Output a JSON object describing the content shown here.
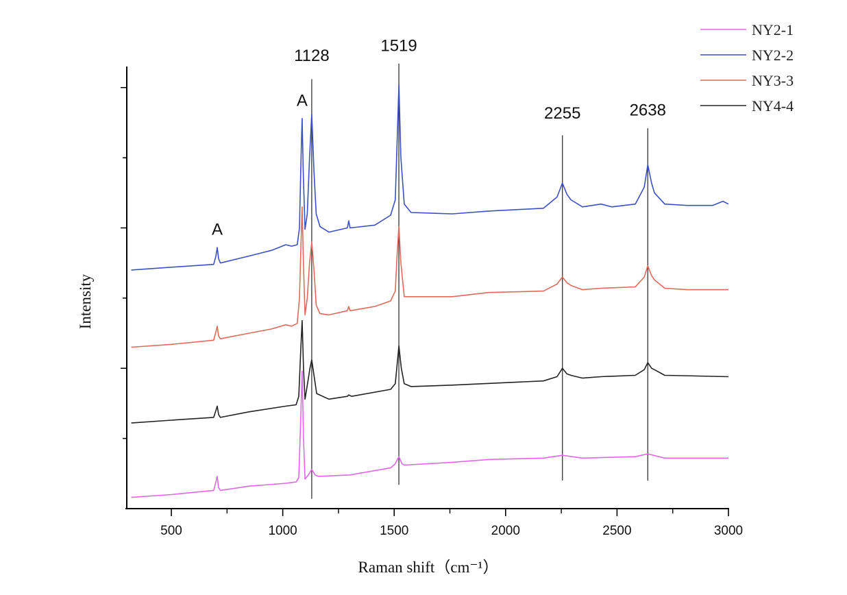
{
  "chart_data": {
    "type": "line",
    "title": "",
    "xlabel": "Raman shift（cm⁻¹）",
    "ylabel": "Intensity",
    "xlim": [
      300,
      3000
    ],
    "ylim": [
      0,
      3.15
    ],
    "x_ticks": [
      500,
      1000,
      1500,
      2000,
      2500,
      3000
    ],
    "x_tick_labels": [
      "500",
      "1000",
      "1500",
      "2000",
      "2500",
      "3000"
    ],
    "y_ticks_unlabeled": true,
    "grid": false,
    "legend_position": "top-right",
    "series": [
      {
        "name": "NY2-1",
        "color": "#e067e8",
        "points": [
          [
            320,
            0.08
          ],
          [
            500,
            0.1
          ],
          [
            690,
            0.13
          ],
          [
            700,
            0.19
          ],
          [
            706,
            0.23
          ],
          [
            712,
            0.15
          ],
          [
            720,
            0.13
          ],
          [
            850,
            0.16
          ],
          [
            1013,
            0.18
          ],
          [
            1060,
            0.19
          ],
          [
            1072,
            0.22
          ],
          [
            1080,
            0.6
          ],
          [
            1087,
            0.98
          ],
          [
            1093,
            0.5
          ],
          [
            1100,
            0.21
          ],
          [
            1115,
            0.24
          ],
          [
            1130,
            0.28
          ],
          [
            1145,
            0.24
          ],
          [
            1160,
            0.23
          ],
          [
            1300,
            0.24
          ],
          [
            1484,
            0.29
          ],
          [
            1505,
            0.32
          ],
          [
            1521,
            0.37
          ],
          [
            1535,
            0.32
          ],
          [
            1545,
            0.31
          ],
          [
            1761,
            0.33
          ],
          [
            1924,
            0.35
          ],
          [
            2170,
            0.36
          ],
          [
            2255,
            0.38
          ],
          [
            2345,
            0.36
          ],
          [
            2582,
            0.37
          ],
          [
            2638,
            0.39
          ],
          [
            2714,
            0.36
          ],
          [
            3000,
            0.36
          ]
        ]
      },
      {
        "name": "NY2-2",
        "color": "#3b4fc6",
        "points": [
          [
            320,
            1.7
          ],
          [
            500,
            1.72
          ],
          [
            690,
            1.74
          ],
          [
            700,
            1.8
          ],
          [
            706,
            1.86
          ],
          [
            712,
            1.78
          ],
          [
            720,
            1.75
          ],
          [
            850,
            1.8
          ],
          [
            950,
            1.84
          ],
          [
            1013,
            1.88
          ],
          [
            1040,
            1.87
          ],
          [
            1065,
            1.88
          ],
          [
            1075,
            2.0
          ],
          [
            1082,
            2.5
          ],
          [
            1087,
            2.78
          ],
          [
            1092,
            2.4
          ],
          [
            1100,
            1.99
          ],
          [
            1110,
            2.1
          ],
          [
            1120,
            2.5
          ],
          [
            1130,
            2.81
          ],
          [
            1140,
            2.4
          ],
          [
            1150,
            2.1
          ],
          [
            1167,
            2.01
          ],
          [
            1207,
            1.97
          ],
          [
            1290,
            2.0
          ],
          [
            1296,
            2.05
          ],
          [
            1302,
            2.0
          ],
          [
            1413,
            2.02
          ],
          [
            1484,
            2.09
          ],
          [
            1505,
            2.2
          ],
          [
            1513,
            2.6
          ],
          [
            1521,
            3.02
          ],
          [
            1530,
            2.5
          ],
          [
            1545,
            2.17
          ],
          [
            1576,
            2.11
          ],
          [
            1761,
            2.1
          ],
          [
            1924,
            2.12
          ],
          [
            2170,
            2.14
          ],
          [
            2231,
            2.22
          ],
          [
            2255,
            2.32
          ],
          [
            2275,
            2.24
          ],
          [
            2293,
            2.2
          ],
          [
            2345,
            2.15
          ],
          [
            2428,
            2.17
          ],
          [
            2477,
            2.15
          ],
          [
            2582,
            2.17
          ],
          [
            2622,
            2.29
          ],
          [
            2638,
            2.45
          ],
          [
            2655,
            2.32
          ],
          [
            2668,
            2.25
          ],
          [
            2714,
            2.17
          ],
          [
            2815,
            2.16
          ],
          [
            2929,
            2.16
          ],
          [
            2975,
            2.19
          ],
          [
            3000,
            2.17
          ]
        ]
      },
      {
        "name": "NY3-3",
        "color": "#e06a5a",
        "points": [
          [
            320,
            1.15
          ],
          [
            500,
            1.17
          ],
          [
            690,
            1.2
          ],
          [
            700,
            1.26
          ],
          [
            706,
            1.3
          ],
          [
            712,
            1.23
          ],
          [
            720,
            1.21
          ],
          [
            850,
            1.25
          ],
          [
            950,
            1.28
          ],
          [
            1013,
            1.31
          ],
          [
            1040,
            1.3
          ],
          [
            1065,
            1.32
          ],
          [
            1075,
            1.5
          ],
          [
            1082,
            1.9
          ],
          [
            1087,
            2.15
          ],
          [
            1092,
            1.8
          ],
          [
            1100,
            1.38
          ],
          [
            1110,
            1.5
          ],
          [
            1120,
            1.75
          ],
          [
            1130,
            1.9
          ],
          [
            1140,
            1.7
          ],
          [
            1150,
            1.45
          ],
          [
            1167,
            1.39
          ],
          [
            1207,
            1.38
          ],
          [
            1290,
            1.41
          ],
          [
            1296,
            1.44
          ],
          [
            1302,
            1.41
          ],
          [
            1413,
            1.44
          ],
          [
            1484,
            1.48
          ],
          [
            1505,
            1.55
          ],
          [
            1513,
            1.8
          ],
          [
            1521,
            2.01
          ],
          [
            1530,
            1.75
          ],
          [
            1545,
            1.51
          ],
          [
            1576,
            1.51
          ],
          [
            1761,
            1.51
          ],
          [
            1924,
            1.54
          ],
          [
            2170,
            1.55
          ],
          [
            2231,
            1.6
          ],
          [
            2255,
            1.65
          ],
          [
            2275,
            1.61
          ],
          [
            2293,
            1.59
          ],
          [
            2345,
            1.56
          ],
          [
            2428,
            1.57
          ],
          [
            2582,
            1.58
          ],
          [
            2622,
            1.65
          ],
          [
            2638,
            1.73
          ],
          [
            2655,
            1.66
          ],
          [
            2668,
            1.63
          ],
          [
            2714,
            1.57
          ],
          [
            2815,
            1.56
          ],
          [
            3000,
            1.56
          ]
        ]
      },
      {
        "name": "NY4-4",
        "color": "#222222",
        "points": [
          [
            320,
            0.61
          ],
          [
            500,
            0.63
          ],
          [
            690,
            0.65
          ],
          [
            700,
            0.7
          ],
          [
            706,
            0.73
          ],
          [
            712,
            0.67
          ],
          [
            720,
            0.65
          ],
          [
            850,
            0.69
          ],
          [
            1013,
            0.73
          ],
          [
            1060,
            0.74
          ],
          [
            1072,
            0.8
          ],
          [
            1080,
            1.1
          ],
          [
            1087,
            1.34
          ],
          [
            1093,
            1.0
          ],
          [
            1100,
            0.78
          ],
          [
            1112,
            0.9
          ],
          [
            1122,
            1.0
          ],
          [
            1130,
            1.06
          ],
          [
            1140,
            0.95
          ],
          [
            1152,
            0.82
          ],
          [
            1207,
            0.78
          ],
          [
            1290,
            0.8
          ],
          [
            1296,
            0.81
          ],
          [
            1309,
            0.8
          ],
          [
            1484,
            0.85
          ],
          [
            1505,
            0.89
          ],
          [
            1513,
            1.02
          ],
          [
            1521,
            1.16
          ],
          [
            1532,
            1.0
          ],
          [
            1545,
            0.89
          ],
          [
            1576,
            0.87
          ],
          [
            1761,
            0.88
          ],
          [
            2170,
            0.91
          ],
          [
            2231,
            0.94
          ],
          [
            2255,
            1.0
          ],
          [
            2275,
            0.96
          ],
          [
            2293,
            0.95
          ],
          [
            2345,
            0.93
          ],
          [
            2428,
            0.94
          ],
          [
            2582,
            0.95
          ],
          [
            2622,
            0.99
          ],
          [
            2638,
            1.04
          ],
          [
            2655,
            1.0
          ],
          [
            2668,
            0.99
          ],
          [
            2714,
            0.95
          ],
          [
            3000,
            0.94
          ]
        ]
      }
    ],
    "annotations": [
      {
        "text": "A",
        "x": 706,
        "y": 1.95
      },
      {
        "text": "A",
        "x": 1087,
        "y": 2.87
      },
      {
        "text": "1128",
        "x": 1130,
        "y": 3.19
      },
      {
        "text": "1519",
        "x": 1521,
        "y": 3.26
      },
      {
        "text": "2255",
        "x": 2255,
        "y": 2.78
      },
      {
        "text": "2638",
        "x": 2638,
        "y": 2.8
      }
    ],
    "reference_lines": [
      {
        "x": 1130,
        "y_from": 0.07,
        "y_to": 3.06
      },
      {
        "x": 1521,
        "y_from": 0.17,
        "y_to": 3.17
      },
      {
        "x": 2255,
        "y_from": 0.2,
        "y_to": 2.66
      },
      {
        "x": 2638,
        "y_from": 0.2,
        "y_to": 2.71
      }
    ]
  }
}
